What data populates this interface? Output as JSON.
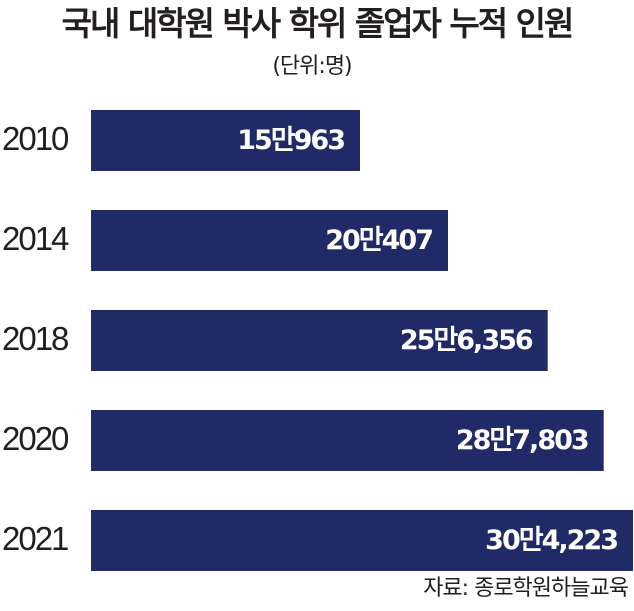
{
  "title": "국내 대학원 박사 학위 졸업자 누적 인원",
  "unit_label": "(단위:명)",
  "source": "자료: 종로학원하늘교육",
  "colors": {
    "bar": "#1f2a66",
    "bar_text": "#ffffff",
    "text": "#231f20"
  },
  "chart_data": {
    "type": "bar",
    "orientation": "horizontal",
    "title": "국내 대학원 박사 학위 졸업자 누적 인원",
    "unit": "(단위:명)",
    "categories": [
      "2010",
      "2014",
      "2018",
      "2020",
      "2021"
    ],
    "values": [
      150963,
      200407,
      256356,
      287803,
      304223
    ],
    "data_labels": [
      "15만963",
      "20만407",
      "25만6,356",
      "28만7,803",
      "30만4,223"
    ],
    "grid": false,
    "legend": "none"
  }
}
